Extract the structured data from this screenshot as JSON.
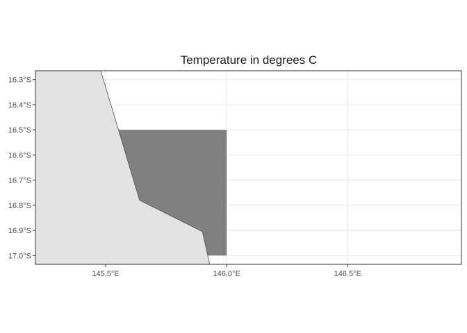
{
  "title": "Temperature in degrees C",
  "map": {
    "lon_range": [
      145.21,
      146.97
    ],
    "lat_range": [
      -17.035,
      -16.265
    ],
    "x_ticks": [
      {
        "value": 145.5,
        "label": "145.5°E"
      },
      {
        "value": 146.0,
        "label": "146.0°E"
      },
      {
        "value": 146.5,
        "label": "146.5°E"
      }
    ],
    "y_ticks": [
      {
        "value": -16.3,
        "label": "16.3°S"
      },
      {
        "value": -16.4,
        "label": "16.4°S"
      },
      {
        "value": -16.5,
        "label": "16.5°S"
      },
      {
        "value": -16.6,
        "label": "16.6°S"
      },
      {
        "value": -16.7,
        "label": "16.7°S"
      },
      {
        "value": -16.8,
        "label": "16.8°S"
      },
      {
        "value": -16.9,
        "label": "16.9°S"
      },
      {
        "value": -17.0,
        "label": "17.0°S"
      }
    ],
    "land_polygon": [
      [
        145.21,
        -16.265
      ],
      [
        145.48,
        -16.265
      ],
      [
        145.64,
        -16.78
      ],
      [
        145.9,
        -16.905
      ],
      [
        145.93,
        -17.035
      ],
      [
        145.21,
        -17.035
      ]
    ],
    "data_cell": {
      "lon_min": 145.5,
      "lon_max": 146.0,
      "lat_min": -17.0,
      "lat_max": -16.5,
      "fill": "#808080"
    },
    "colors": {
      "land": "#e3e3e3",
      "coast": "#4d4d4d",
      "panel_border": "#333333",
      "grid": "#ebebeb",
      "background": "#ffffff"
    }
  }
}
